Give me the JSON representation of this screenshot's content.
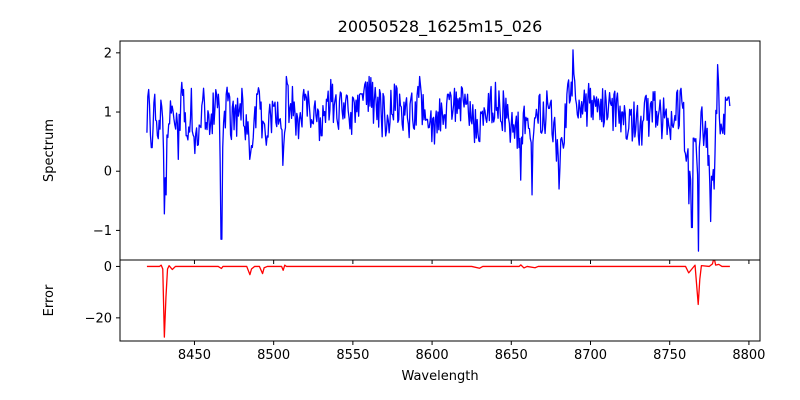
{
  "chart_data": [
    {
      "type": "line",
      "title": "20050528_1625m15_026",
      "xlabel": "",
      "ylabel": "Spectrum",
      "xlim": [
        8403,
        8807
      ],
      "ylim": [
        -1.5,
        2.2
      ],
      "xticks": [
        8450,
        8500,
        8550,
        8600,
        8650,
        8700,
        8750,
        8800
      ],
      "yticks": [
        -1,
        0,
        1,
        2
      ],
      "ytick_labels": [
        "−1",
        "0",
        "1",
        "2"
      ],
      "show_xtick_labels": false,
      "grid": false,
      "series": [
        {
          "color": "#0000ff",
          "x_start": 8420,
          "x_step": 2,
          "baseline": 0.9,
          "noise_amplitude": 0.38,
          "points": [
            [
              8420,
              0.65
            ],
            [
              8421,
              1.38
            ],
            [
              8423,
              0.4
            ],
            [
              8425,
              1.3
            ],
            [
              8427,
              0.55
            ],
            [
              8429,
              1.2
            ],
            [
              8430,
              0.9
            ],
            [
              8431,
              -0.72
            ],
            [
              8432,
              -0.4
            ],
            [
              8434,
              0.8
            ],
            [
              8436,
              1.1
            ],
            [
              8440,
              0.2
            ],
            [
              8442,
              1.5
            ],
            [
              8445,
              0.6
            ],
            [
              8448,
              1.4
            ],
            [
              8450,
              0.3
            ],
            [
              8455,
              1.2
            ],
            [
              8460,
              0.8
            ],
            [
              8465,
              1.3
            ],
            [
              8466,
              0.2
            ],
            [
              8467,
              -1.15
            ],
            [
              8468,
              0.4
            ],
            [
              8470,
              1.3
            ],
            [
              8475,
              0.7
            ],
            [
              8480,
              1.4
            ],
            [
              8485,
              0.2
            ],
            [
              8490,
              1.3
            ],
            [
              8495,
              0.6
            ],
            [
              8500,
              1.1
            ],
            [
              8505,
              0.7
            ],
            [
              8506,
              0.1
            ],
            [
              8508,
              1.6
            ],
            [
              8515,
              0.9
            ],
            [
              8520,
              1.3
            ],
            [
              8525,
              0.8
            ],
            [
              8530,
              0.6
            ],
            [
              8536,
              1.55
            ],
            [
              8545,
              0.9
            ],
            [
              8552,
              1.2
            ],
            [
              8560,
              1.6
            ],
            [
              8570,
              0.9
            ],
            [
              8578,
              1.4
            ],
            [
              8585,
              0.8
            ],
            [
              8592,
              1.6
            ],
            [
              8600,
              0.5
            ],
            [
              8610,
              1.3
            ],
            [
              8619,
              1.4
            ],
            [
              8625,
              0.8
            ],
            [
              8630,
              0.5
            ],
            [
              8640,
              1.5
            ],
            [
              8648,
              0.9
            ],
            [
              8655,
              0.4
            ],
            [
              8656,
              -0.15
            ],
            [
              8658,
              1.1
            ],
            [
              8663,
              -0.4
            ],
            [
              8665,
              0.9
            ],
            [
              8675,
              1.2
            ],
            [
              8680,
              -0.3
            ],
            [
              8685,
              1.3
            ],
            [
              8689,
              2.05
            ],
            [
              8692,
              0.9
            ],
            [
              8700,
              1.4
            ],
            [
              8710,
              1.2
            ],
            [
              8720,
              1.0
            ],
            [
              8730,
              0.6
            ],
            [
              8740,
              1.2
            ],
            [
              8750,
              0.7
            ],
            [
              8757,
              1.4
            ],
            [
              8760,
              0.3
            ],
            [
              8762,
              -0.55
            ],
            [
              8764,
              -0.95
            ],
            [
              8766,
              0.5
            ],
            [
              8768,
              -1.35
            ],
            [
              8770,
              1.0
            ],
            [
              8774,
              0.1
            ],
            [
              8776,
              -0.85
            ],
            [
              8778,
              -0.3
            ],
            [
              8780,
              1.8
            ],
            [
              8783,
              0.7
            ],
            [
              8786,
              1.2
            ],
            [
              8788,
              1.1
            ]
          ]
        }
      ]
    },
    {
      "type": "line",
      "title": "",
      "xlabel": "Wavelength",
      "ylabel": "Error",
      "xlim": [
        8403,
        8807
      ],
      "ylim": [
        -29,
        2.5
      ],
      "xticks": [
        8450,
        8500,
        8550,
        8600,
        8650,
        8700,
        8750,
        8800
      ],
      "xtick_labels": [
        "8450",
        "8500",
        "8550",
        "8600",
        "8650",
        "8700",
        "8750",
        "8800"
      ],
      "yticks": [
        -20,
        0
      ],
      "ytick_labels": [
        "−20",
        "0"
      ],
      "grid": false,
      "series": [
        {
          "color": "#ff0000",
          "points": [
            [
              8420,
              0.0
            ],
            [
              8428,
              0.0
            ],
            [
              8429,
              0.5
            ],
            [
              8430,
              -1.0
            ],
            [
              8431,
              -27.5
            ],
            [
              8432,
              -12.0
            ],
            [
              8433,
              -1.0
            ],
            [
              8434,
              0.3
            ],
            [
              8436,
              -1.2
            ],
            [
              8438,
              0.0
            ],
            [
              8450,
              0.0
            ],
            [
              8465,
              0.0
            ],
            [
              8467,
              -0.8
            ],
            [
              8468,
              0.0
            ],
            [
              8483,
              0.0
            ],
            [
              8485,
              -3.2
            ],
            [
              8486,
              -1.0
            ],
            [
              8488,
              0.0
            ],
            [
              8491,
              0.0
            ],
            [
              8493,
              -2.8
            ],
            [
              8494,
              -0.5
            ],
            [
              8496,
              0.0
            ],
            [
              8505,
              0.0
            ],
            [
              8506,
              -1.5
            ],
            [
              8507,
              0.5
            ],
            [
              8508,
              0.0
            ],
            [
              8520,
              0.0
            ],
            [
              8560,
              0.0
            ],
            [
              8600,
              0.0
            ],
            [
              8625,
              0.0
            ],
            [
              8630,
              -0.7
            ],
            [
              8632,
              0.0
            ],
            [
              8655,
              0.0
            ],
            [
              8656,
              0.6
            ],
            [
              8658,
              -0.6
            ],
            [
              8660,
              0.0
            ],
            [
              8665,
              -0.5
            ],
            [
              8667,
              0.0
            ],
            [
              8700,
              0.0
            ],
            [
              8740,
              0.0
            ],
            [
              8760,
              0.0
            ],
            [
              8762,
              -2.5
            ],
            [
              8764,
              -1.0
            ],
            [
              8766,
              0.5
            ],
            [
              8768,
              -14.8
            ],
            [
              8769,
              -5.0
            ],
            [
              8770,
              0.3
            ],
            [
              8775,
              0.0
            ],
            [
              8777,
              1.0
            ],
            [
              8778,
              3.5
            ],
            [
              8779,
              0.5
            ],
            [
              8781,
              0.8
            ],
            [
              8783,
              0.0
            ],
            [
              8788,
              0.0
            ]
          ]
        }
      ]
    }
  ]
}
